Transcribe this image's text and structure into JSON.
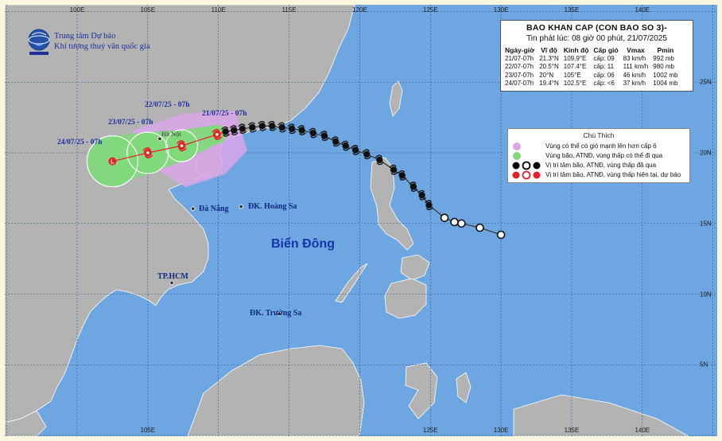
{
  "header": {
    "title": "BAO KHAN CAP (CON BAO SO 3)-",
    "issued": "Tin phát lúc: 08 giờ 00 phút, 21/07/2025"
  },
  "forecast_table": {
    "columns": [
      "Ngày-giờ",
      "Vĩ độ",
      "Kinh độ",
      "Cấp gió",
      "Vmax",
      "Pmin"
    ],
    "rows": [
      {
        "time": "21/07-07h",
        "lat": "21.3°N",
        "lon": "109.9°E",
        "level": "cấp: 09",
        "vmax": "83 km/h",
        "pmin": "992 mb"
      },
      {
        "time": "22/07-07h",
        "lat": "20.5°N",
        "lon": "107.4°E",
        "level": "cấp: 11",
        "vmax": "111 km/h",
        "pmin": "980 mb"
      },
      {
        "time": "23/07-07h",
        "lat": "20°N",
        "lon": "105°E",
        "level": "cấp: 06",
        "vmax": "46 km/h",
        "pmin": "1002 mb"
      },
      {
        "time": "24/07-07h",
        "lat": "19.4°N",
        "lon": "102.5°E",
        "level": "cấp: <6",
        "vmax": "37 km/h",
        "pmin": "1004 mb"
      }
    ]
  },
  "legend": {
    "title": "Chú Thích",
    "items": [
      {
        "label": "Vùng có thể có gió mạnh lên hơn cấp 6",
        "color": "#d9a6e8"
      },
      {
        "label": "Vùng bão, ATNĐ, vùng thấp có thể đi qua",
        "color": "#7fd97a"
      },
      {
        "label": "Vị trí tâm bão, ATNĐ, vùng thấp đã qua",
        "color": "#000000"
      },
      {
        "label": "Vị trí tâm bão, ATNĐ, vùng thấp hiện tại, dự báo",
        "color": "#e8202a"
      }
    ]
  },
  "agency": {
    "line1": "Trung tâm Dự báo",
    "line2": "Khí tượng thuỷ văn quốc gia"
  },
  "grid": {
    "lon_labels": [
      "100E",
      "105E",
      "110E",
      "115E",
      "120E",
      "125E",
      "130E",
      "135E",
      "140E"
    ],
    "lon_bottom_labels": [
      "105E",
      "125E",
      "130E",
      "135E",
      "140E"
    ],
    "lat_labels": [
      "25N",
      "20N",
      "15N",
      "10N",
      "5N"
    ]
  },
  "places": {
    "hanoi": "Hà Nội",
    "danang": "Đà Nẵng",
    "hoangsa": "ĐK. Hoàng Sa",
    "hcm": "TP.HCM",
    "truongsa": "ĐK. Trường Sa",
    "sea": "Biển Đông"
  },
  "forecast_labels": [
    "21/07/25 - 07h",
    "22/07/25 - 07h",
    "23/07/25 - 07h",
    "24/07/25 - 07h"
  ],
  "track_past": [
    {
      "lon": 130.0,
      "lat": 14.2
    },
    {
      "lon": 128.5,
      "lat": 14.7
    },
    {
      "lon": 127.2,
      "lat": 15.0
    },
    {
      "lon": 126.7,
      "lat": 15.1
    },
    {
      "lon": 126.0,
      "lat": 15.4
    },
    {
      "lon": 124.9,
      "lat": 16.3
    },
    {
      "lon": 124.4,
      "lat": 17.0
    },
    {
      "lon": 123.8,
      "lat": 17.6
    },
    {
      "lon": 123.0,
      "lat": 18.4
    },
    {
      "lon": 122.4,
      "lat": 18.8
    },
    {
      "lon": 121.4,
      "lat": 19.5
    },
    {
      "lon": 120.5,
      "lat": 19.9
    },
    {
      "lon": 119.7,
      "lat": 20.2
    },
    {
      "lon": 119.0,
      "lat": 20.5
    },
    {
      "lon": 118.3,
      "lat": 20.8
    },
    {
      "lon": 117.5,
      "lat": 21.2
    },
    {
      "lon": 116.7,
      "lat": 21.4
    },
    {
      "lon": 115.9,
      "lat": 21.6
    },
    {
      "lon": 115.2,
      "lat": 21.7
    },
    {
      "lon": 114.5,
      "lat": 21.8
    },
    {
      "lon": 113.8,
      "lat": 21.9
    },
    {
      "lon": 113.1,
      "lat": 21.9
    },
    {
      "lon": 112.4,
      "lat": 21.8
    },
    {
      "lon": 111.7,
      "lat": 21.7
    },
    {
      "lon": 111.1,
      "lat": 21.6
    },
    {
      "lon": 110.5,
      "lat": 21.5
    }
  ],
  "track_forecast": [
    {
      "lon": 109.9,
      "lat": 21.3,
      "time": "21/07-07h"
    },
    {
      "lon": 107.4,
      "lat": 20.5,
      "time": "22/07-07h"
    },
    {
      "lon": 105.0,
      "lat": 20.0,
      "time": "23/07-07h"
    },
    {
      "lon": 102.5,
      "lat": 19.4,
      "time": "24/07-07h"
    }
  ]
}
